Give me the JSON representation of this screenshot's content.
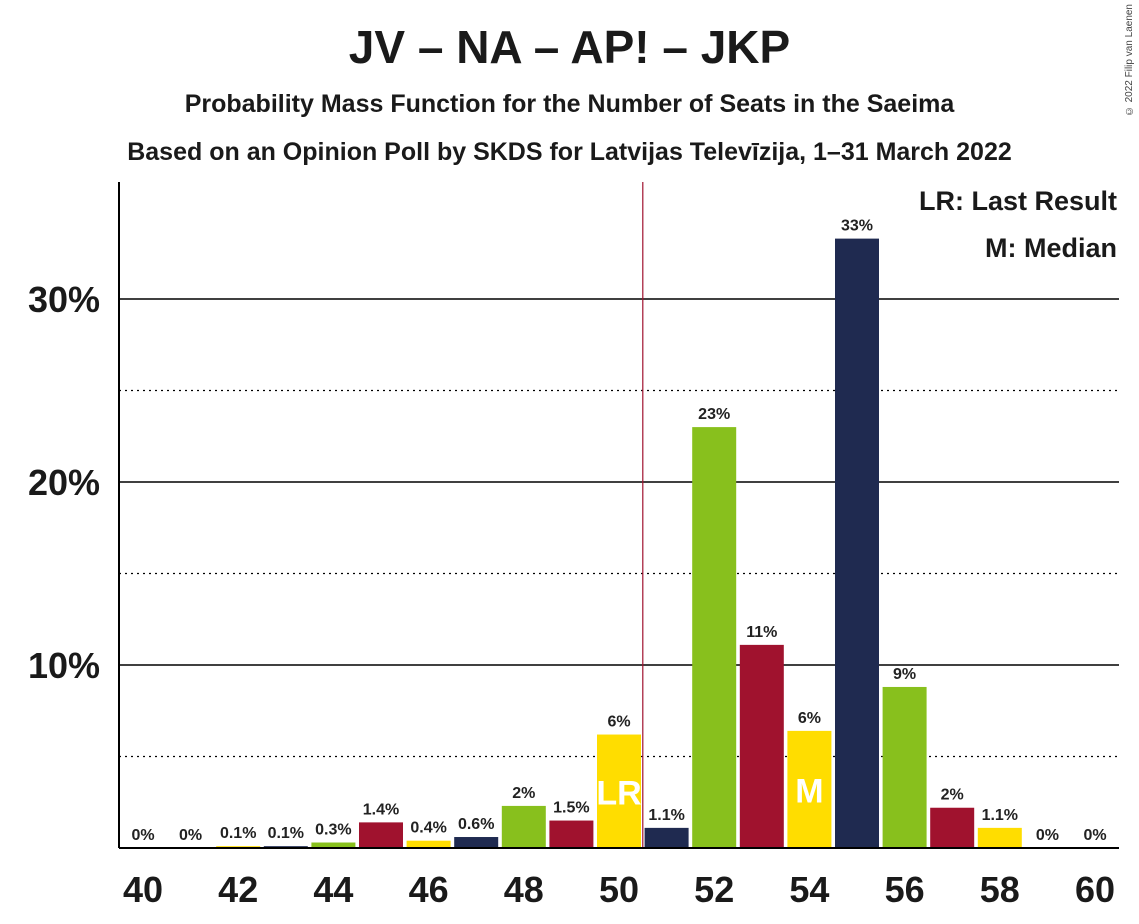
{
  "title": "JV – NA – AP! – JKP",
  "subtitle1": "Probability Mass Function for the Number of Seats in the Saeima",
  "subtitle2": "Based on an Opinion Poll by SKDS for Latvijas Televīzija, 1–31 March 2022",
  "copyright": "© 2022 Filip van Laenen",
  "legend": {
    "lr": "LR: Last Result",
    "m": "M: Median"
  },
  "colors": {
    "green": "#88c01d",
    "red": "#a0122e",
    "yellow": "#ffdd00",
    "navy": "#1f2a50",
    "axis": "#000000",
    "last_result_line": "#a0122e"
  },
  "chart_data": {
    "type": "bar",
    "x": [
      40,
      41,
      42,
      43,
      44,
      45,
      46,
      47,
      48,
      49,
      50,
      51,
      52,
      53,
      54,
      55,
      56,
      57,
      58,
      59,
      60
    ],
    "values": [
      0,
      0,
      0.1,
      0.1,
      0.3,
      1.4,
      0.4,
      0.6,
      2.3,
      1.5,
      6.2,
      1.1,
      23.0,
      11.1,
      6.4,
      33.3,
      8.8,
      2.2,
      1.1,
      0,
      0
    ],
    "labels": [
      "0%",
      "0%",
      "0.1%",
      "0.1%",
      "0.3%",
      "1.4%",
      "0.4%",
      "0.6%",
      "2%",
      "1.5%",
      "6%",
      "1.1%",
      "23%",
      "11%",
      "6%",
      "33%",
      "9%",
      "2%",
      "1.1%",
      "0%",
      "0%"
    ],
    "bar_colors": [
      "green",
      "red",
      "yellow",
      "navy",
      "green",
      "red",
      "yellow",
      "navy",
      "green",
      "red",
      "yellow",
      "navy",
      "green",
      "red",
      "yellow",
      "navy",
      "green",
      "red",
      "yellow",
      "navy",
      "green"
    ],
    "x_tick_labels": [
      "40",
      "42",
      "44",
      "46",
      "48",
      "50",
      "52",
      "54",
      "56",
      "58",
      "60"
    ],
    "y_ticks": [
      10,
      20,
      30
    ],
    "y_tick_labels": [
      "10%",
      "20%",
      "30%"
    ],
    "y_minor_ticks": [
      5,
      15,
      25
    ],
    "ylim": [
      0,
      36
    ],
    "last_result": {
      "seats": 50,
      "label": "LR"
    },
    "median": {
      "seats": 54,
      "label": "M"
    },
    "last_result_line_after": 50,
    "xlabel": "",
    "ylabel": ""
  }
}
